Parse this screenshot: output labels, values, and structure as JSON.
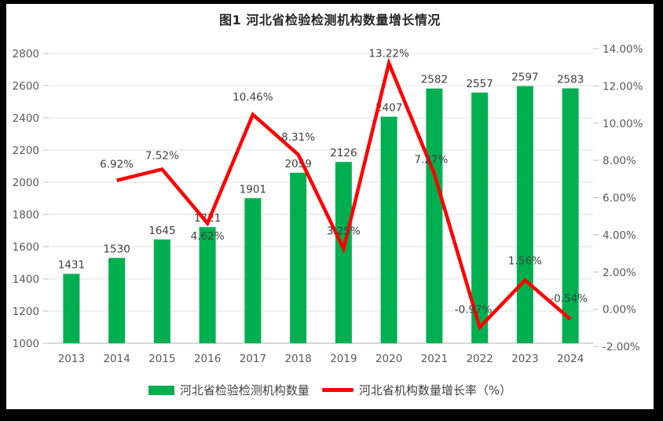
{
  "title": "图1  河北省检验检测机构数量增长情况",
  "chart_data": {
    "type": "combo-bar-line",
    "categories": [
      "2013",
      "2014",
      "2015",
      "2016",
      "2017",
      "2018",
      "2019",
      "2020",
      "2021",
      "2022",
      "2023",
      "2024"
    ],
    "series": [
      {
        "name": "河北省检验检测机构数量",
        "type": "bar",
        "color": "#00B050",
        "axis": "left",
        "values": [
          1431,
          1530,
          1645,
          1721,
          1901,
          2059,
          2126,
          2407,
          2582,
          2557,
          2597,
          2583
        ],
        "value_labels": [
          "1431",
          "1530",
          "1645",
          "1721",
          "1901",
          "2059",
          "2126",
          "2407",
          "2582",
          "2557",
          "2597",
          "2583"
        ]
      },
      {
        "name": "河北省机构数量增长率（%）",
        "type": "line",
        "color": "#FF0000",
        "axis": "right",
        "values": [
          null,
          6.92,
          7.52,
          4.62,
          10.46,
          8.31,
          3.25,
          13.22,
          7.27,
          -0.97,
          1.56,
          -0.54
        ],
        "point_labels": [
          "",
          "6.92%",
          "7.52%",
          "4.62%",
          "10.46%",
          "8.31%",
          "3.25%",
          "13.22%",
          "7.27%",
          "-0.97%",
          "1.56%",
          "-0.54%"
        ]
      }
    ],
    "left_axis": {
      "min": 1000,
      "max": 2800,
      "step": 200,
      "tick_labels": [
        "1000",
        "1200",
        "1400",
        "1600",
        "1800",
        "2000",
        "2200",
        "2400",
        "2600",
        "2800"
      ]
    },
    "right_axis": {
      "min": -2,
      "max": 14,
      "step": 2,
      "tick_labels": [
        "-2.00%",
        "0.00%",
        "2.00%",
        "4.00%",
        "6.00%",
        "8.00%",
        "10.00%",
        "12.00%",
        "14.00%"
      ]
    },
    "grid": true,
    "legend_position": "bottom"
  },
  "legend": {
    "bar_label": "河北省检验检测机构数量",
    "line_label": "河北省机构数量增长率（%）"
  },
  "colors": {
    "bar": "#00B050",
    "line": "#FF0000",
    "grid": "#E2E2E2",
    "axis": "#BFBFBF",
    "tick_text": "#595959",
    "data_label": "#404040",
    "title_text": "#262626",
    "frame": "#000000",
    "background": "#FFFFFF"
  }
}
